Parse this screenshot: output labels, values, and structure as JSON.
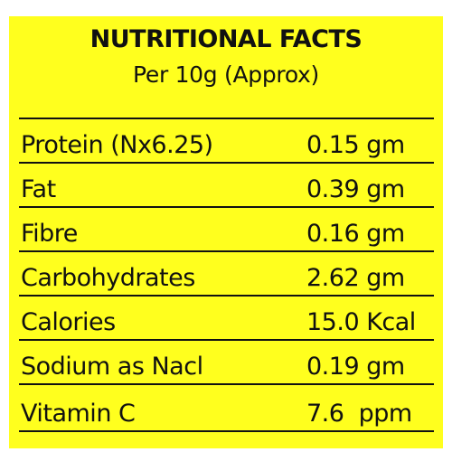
{
  "header": {
    "title": "NUTRITIONAL FACTS",
    "subtitle": "Per 10g (Approx)"
  },
  "colors": {
    "background": "#ffff1e",
    "text": "#111111"
  },
  "rows": [
    {
      "nutrient": "Protein (Nx6.25)",
      "amount": "0.15 gm"
    },
    {
      "nutrient": "Fat",
      "amount": "0.39 gm"
    },
    {
      "nutrient": "Fibre",
      "amount": "0.16 gm"
    },
    {
      "nutrient": "Carbohydrates",
      "amount": "2.62 gm"
    },
    {
      "nutrient": "Calories",
      "amount": "15.0 Kcal"
    },
    {
      "nutrient": "Sodium as Nacl",
      "amount": "0.19 gm"
    },
    {
      "nutrient": "Vitamin C",
      "amount": "7.6  ppm"
    }
  ]
}
